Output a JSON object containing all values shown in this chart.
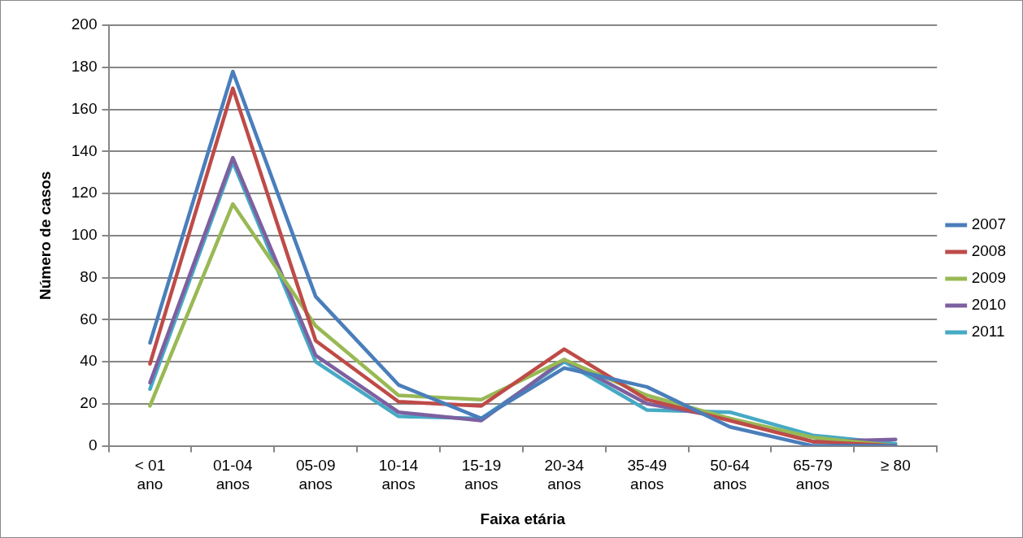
{
  "chart_data": {
    "type": "line",
    "xlabel": "Faixa etária",
    "ylabel": "Número de casos",
    "categories": [
      "< 01\nano",
      "01-04\nanos",
      "05-09\nanos",
      "10-14\nanos",
      "15-19\nanos",
      "20-34\nanos",
      "35-49\nanos",
      "50-64\nanos",
      "65-79\nanos",
      "≥ 80"
    ],
    "series": [
      {
        "name": "2007",
        "color": "#4a7ebb",
        "values": [
          49,
          178,
          71,
          29,
          13,
          37,
          28,
          9,
          0,
          0
        ]
      },
      {
        "name": "2008",
        "color": "#be4b48",
        "values": [
          39,
          170,
          50,
          21,
          19,
          46,
          22,
          12,
          2,
          0
        ]
      },
      {
        "name": "2009",
        "color": "#98b954",
        "values": [
          19,
          115,
          57,
          24,
          22,
          41,
          24,
          13,
          4,
          0
        ]
      },
      {
        "name": "2010",
        "color": "#7d60a0",
        "values": [
          30,
          137,
          43,
          16,
          12,
          41,
          20,
          13,
          2,
          3
        ]
      },
      {
        "name": "2011",
        "color": "#46aac5",
        "values": [
          27,
          135,
          40,
          14,
          13,
          40,
          17,
          16,
          5,
          1
        ]
      }
    ],
    "ylim": [
      0,
      200
    ],
    "yticks": [
      0,
      20,
      40,
      60,
      80,
      100,
      120,
      140,
      160,
      180,
      200
    ],
    "grid": "y",
    "legend": "right",
    "marker": "none",
    "line_style": "solid"
  }
}
